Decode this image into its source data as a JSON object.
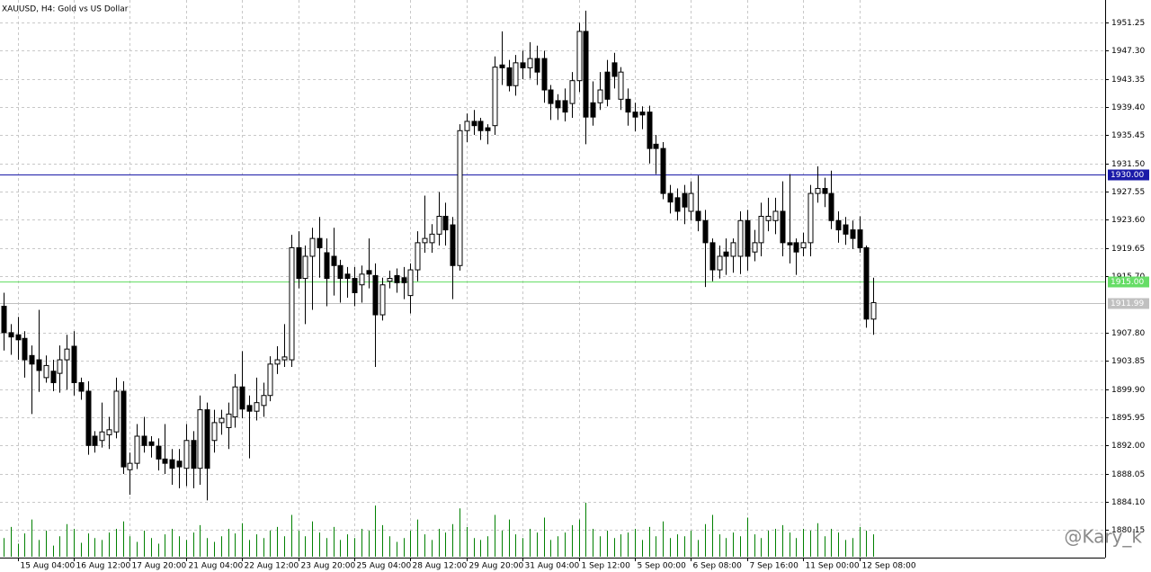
{
  "chart_data": {
    "type": "candlestick",
    "title": "XAUUSD, H4:  Gold vs US Dollar",
    "watermark": "@Kary_k",
    "categories": [
      null,
      null,
      "15 Aug 04:00",
      null,
      null,
      null,
      null,
      null,
      null,
      null,
      "16 Aug 12:00",
      null,
      null,
      null,
      null,
      null,
      null,
      null,
      "17 Aug 20:00",
      null,
      null,
      null,
      null,
      null,
      null,
      null,
      "21 Aug 04:00",
      null,
      null,
      null,
      null,
      null,
      null,
      null,
      "22 Aug 12:00",
      null,
      null,
      null,
      null,
      null,
      null,
      null,
      "23 Aug 20:00",
      null,
      null,
      null,
      null,
      null,
      null,
      null,
      "25 Aug 04:00",
      null,
      null,
      null,
      null,
      null,
      null,
      null,
      "28 Aug 12:00",
      null,
      null,
      null,
      null,
      null,
      null,
      null,
      "29 Aug 20:00",
      null,
      null,
      null,
      null,
      null,
      null,
      null,
      "31 Aug 04:00",
      null,
      null,
      null,
      null,
      null,
      null,
      null,
      "1 Sep 12:00",
      null,
      null,
      null,
      null,
      null,
      null,
      null,
      "5 Sep 00:00",
      null,
      null,
      null,
      null,
      null,
      null,
      null,
      "6 Sep 08:00",
      null,
      null,
      null,
      null,
      null,
      null,
      null,
      "7 Sep 16:00",
      null,
      null,
      null,
      null,
      null,
      null,
      null,
      "11 Sep 00:00",
      null,
      null,
      null,
      null,
      null,
      null,
      null,
      "12 Sep 08:00",
      null,
      null
    ],
    "open": [
      1911.5,
      1907.8,
      1907.5,
      1907,
      1904.6,
      1904,
      1901.5,
      1902.4,
      1902.1,
      1904,
      1905.9,
      1900.8,
      1899.6,
      1893.3,
      1892.7,
      1893.5,
      1893.9,
      1899.6,
      1888.6,
      1889.5,
      1893.3,
      1892.5,
      1891.9,
      1890.1,
      1890,
      1889.8,
      1888.8,
      1892.7,
      1888.8,
      1897,
      1892.7,
      1895.2,
      1894.5,
      1896,
      1900.2,
      1897.6,
      1896.8,
      1897.6,
      1899,
      1903.4,
      1904,
      1904,
      1919.7,
      1915.4,
      1918.5,
      1921,
      1919,
      1918.5,
      1917.2,
      1916,
      1915.4,
      1914.5,
      1916.5,
      1915.8,
      1910.3,
      1915,
      1915.8,
      1915.5,
      1913,
      1916.6,
      1920.4,
      1920.4,
      1921.6,
      1924.1,
      1922.9,
      1917.2,
      1936.1,
      1937.4,
      1937.4,
      1936.5,
      1936.8,
      1945.3,
      1944.9,
      1942.4,
      1945.6,
      1944.9,
      1946.2,
      1946.2,
      1941.8,
      1940.3,
      1940.3,
      1939.9,
      1943.1,
      1950,
      1940,
      1940,
      1944.3,
      1945.6,
      1940.5,
      1940.5,
      1938.7,
      1938.7,
      1938.7,
      1934.2,
      1933.6,
      1927.3,
      1926.7,
      1927.3,
      1924.8,
      1924.8,
      1923.5,
      1920.4,
      1916.6,
      1919.1,
      1918.5,
      1918.5,
      1923.5,
      1919.1,
      1920.4,
      1923.5,
      1923.5,
      1924.8,
      1920.4,
      1920.4,
      1919.7,
      1920.4,
      1927.3,
      1928,
      1927.3,
      1923.5,
      1922.9,
      1922.2,
      1922.2,
      1919.7,
      1909.7
    ],
    "high": [
      1913.4,
      1909,
      1910,
      1908,
      1906,
      1911,
      1904.6,
      1904,
      1906,
      1907.5,
      1908,
      1901.5,
      1901,
      1894,
      1898,
      1896,
      1901.5,
      1901,
      1891,
      1895,
      1896,
      1893.3,
      1893,
      1895,
      1891.5,
      1891.5,
      1895,
      1894,
      1899,
      1898,
      1897,
      1897,
      1898,
      1902,
      1905.2,
      1899,
      1901.5,
      1900.8,
      1904.5,
      1905.9,
      1909,
      1921.5,
      1922,
      1920,
      1922.5,
      1924,
      1921,
      1922.5,
      1918,
      1917,
      1917,
      1917.2,
      1921,
      1917.5,
      1915.5,
      1916.5,
      1916.8,
      1917,
      1917.5,
      1922,
      1927,
      1923,
      1927.5,
      1926,
      1924,
      1937,
      1938.5,
      1939,
      1937.9,
      1937,
      1946.5,
      1950,
      1946,
      1946.7,
      1947.3,
      1948.5,
      1948,
      1947.3,
      1942.5,
      1941.2,
      1942,
      1944.3,
      1951.2,
      1952.9,
      1943,
      1944.3,
      1946,
      1947,
      1945,
      1942,
      1940,
      1939.5,
      1939.6,
      1935.5,
      1934.5,
      1928.5,
      1928,
      1928.5,
      1929,
      1929.8,
      1925,
      1921,
      1920,
      1921,
      1921,
      1924.8,
      1925,
      1922.2,
      1926,
      1926.7,
      1926.7,
      1929,
      1930,
      1921,
      1921.8,
      1928.5,
      1931.1,
      1929.5,
      1930.5,
      1924.8,
      1924,
      1923.5,
      1924.1,
      1920,
      1915.5
    ],
    "low": [
      1905.3,
      1904.7,
      1904,
      1901.5,
      1896.4,
      1899.5,
      1900.8,
      1899.6,
      1899.4,
      1899.8,
      1899,
      1898.4,
      1890.7,
      1891,
      1891.7,
      1891.5,
      1893,
      1888,
      1885.1,
      1888.7,
      1891,
      1890.3,
      1888.5,
      1888,
      1886.5,
      1886,
      1886.3,
      1886,
      1886.5,
      1884.3,
      1891,
      1893.5,
      1891.5,
      1894.5,
      1895.8,
      1890.2,
      1895.5,
      1896,
      1898.2,
      1902,
      1903,
      1903,
      1914,
      1909,
      1911,
      1915.5,
      1911.5,
      1913,
      1912,
      1912.7,
      1911.5,
      1912,
      1914,
      1903,
      1909.5,
      1914,
      1913.4,
      1912.5,
      1910.5,
      1915,
      1919,
      1919,
      1920,
      1920,
      1912.5,
      1916.5,
      1934.5,
      1935.5,
      1934.8,
      1934.2,
      1935.5,
      1942.5,
      1941.6,
      1941,
      1943.3,
      1943.4,
      1942.5,
      1940,
      1937.6,
      1937.6,
      1937.4,
      1937.9,
      1941.5,
      1934.2,
      1936.8,
      1939,
      1939.5,
      1942,
      1939,
      1936.8,
      1936,
      1936.3,
      1931.5,
      1930,
      1926.5,
      1924.5,
      1923.5,
      1923,
      1923.5,
      1922,
      1914.2,
      1915,
      1915.4,
      1915.9,
      1916.2,
      1916,
      1916.5,
      1917.8,
      1918.5,
      1922,
      1921.6,
      1918.5,
      1917.5,
      1915.9,
      1918.5,
      1918.5,
      1926,
      1925.4,
      1922.3,
      1920.4,
      1920.1,
      1919.5,
      1919,
      1908.5,
      1907.5
    ],
    "close": [
      1907.8,
      1907.2,
      1906.8,
      1904,
      1903.4,
      1902.5,
      1903.2,
      1900.8,
      1904,
      1905.5,
      1900.8,
      1899.6,
      1892,
      1892,
      1893.9,
      1894.2,
      1899.6,
      1889,
      1889.5,
      1893.3,
      1892,
      1892,
      1890.1,
      1889.5,
      1888.8,
      1889,
      1892.7,
      1888.8,
      1897,
      1888.8,
      1895.2,
      1895.8,
      1896.4,
      1900.2,
      1897.1,
      1896.8,
      1898,
      1899,
      1903.4,
      1904,
      1904.4,
      1919.7,
      1915.4,
      1918.5,
      1921,
      1919.7,
      1915.4,
      1917.2,
      1915.4,
      1915.4,
      1913.4,
      1916,
      1916,
      1910.3,
      1914.5,
      1915.4,
      1914.8,
      1914.8,
      1916.6,
      1920.4,
      1921,
      1921.6,
      1924.1,
      1922.2,
      1917.2,
      1936.1,
      1937.4,
      1936.8,
      1936.1,
      1936.1,
      1945,
      1944.9,
      1942.4,
      1945.6,
      1944.9,
      1946.2,
      1944.3,
      1941.8,
      1939.9,
      1939.3,
      1938.7,
      1943.1,
      1950,
      1938,
      1938,
      1941.8,
      1940.5,
      1943.7,
      1944.3,
      1938.7,
      1938,
      1938.3,
      1933.6,
      1933.6,
      1927.3,
      1926.1,
      1924.8,
      1925.4,
      1927.3,
      1923.5,
      1920.4,
      1916.6,
      1918.5,
      1918.5,
      1920.4,
      1923.5,
      1918.5,
      1920.4,
      1924.1,
      1924.1,
      1924.8,
      1920.4,
      1920.1,
      1919.1,
      1920.4,
      1927.3,
      1928,
      1927.3,
      1923.5,
      1922.2,
      1921.6,
      1921,
      1919.7,
      1909.7,
      1912
    ],
    "volume": [
      20,
      32,
      14,
      25,
      40,
      18,
      28,
      12,
      22,
      35,
      30,
      15,
      25,
      20,
      18,
      26,
      30,
      38,
      22,
      16,
      28,
      20,
      14,
      24,
      30,
      22,
      18,
      26,
      34,
      20,
      16,
      22,
      30,
      25,
      36,
      18,
      24,
      20,
      28,
      32,
      22,
      45,
      28,
      22,
      38,
      26,
      20,
      32,
      18,
      24,
      20,
      30,
      28,
      55,
      34,
      22,
      16,
      20,
      28,
      40,
      24,
      18,
      30,
      26,
      35,
      52,
      32,
      20,
      18,
      22,
      45,
      28,
      40,
      24,
      20,
      30,
      26,
      42,
      18,
      22,
      26,
      34,
      40,
      58,
      30,
      22,
      28,
      20,
      24,
      26,
      30,
      18,
      32,
      22,
      38,
      20,
      24,
      22,
      28,
      18,
      35,
      45,
      24,
      20,
      26,
      22,
      42,
      24,
      20,
      28,
      30,
      34,
      26,
      20,
      30,
      28,
      36,
      22,
      30,
      26,
      18,
      20,
      32,
      28,
      24
    ],
    "volume_color": "#008000",
    "bull_color": "#ffffff",
    "bear_color": "#000000",
    "ylim": [
      1876.29,
      1954.4
    ],
    "yticks": [
      {
        "value": 1951.25,
        "label": "1951.25"
      },
      {
        "value": 1947.3,
        "label": "1947.30"
      },
      {
        "value": 1943.35,
        "label": "1943.35"
      },
      {
        "value": 1939.4,
        "label": "1939.40"
      },
      {
        "value": 1935.45,
        "label": "1935.45"
      },
      {
        "value": 1931.5,
        "label": "1931.50"
      },
      {
        "value": 1927.55,
        "label": "1927.55"
      },
      {
        "value": 1923.6,
        "label": "1923.60"
      },
      {
        "value": 1919.65,
        "label": "1919.65"
      },
      {
        "value": 1915.7,
        "label": "1915.70"
      },
      {
        "value": 1907.8,
        "label": "1907.80"
      },
      {
        "value": 1903.85,
        "label": "1903.85"
      },
      {
        "value": 1899.9,
        "label": "1899.90"
      },
      {
        "value": 1895.95,
        "label": "1895.95"
      },
      {
        "value": 1892,
        "label": "1892.00"
      },
      {
        "value": 1888.05,
        "label": "1888.05"
      },
      {
        "value": 1884.1,
        "label": "1884.10"
      },
      {
        "value": 1880.15,
        "label": "1880.15"
      }
    ],
    "hlines": [
      {
        "value": 1930,
        "label": "1930.00",
        "color": "#1a1aa8"
      },
      {
        "value": 1915,
        "label": "1915.00",
        "color": "#66dd66"
      },
      {
        "value": 1911.99,
        "label": "1911.99",
        "color": "#c0c0c0"
      }
    ],
    "grid": true
  }
}
